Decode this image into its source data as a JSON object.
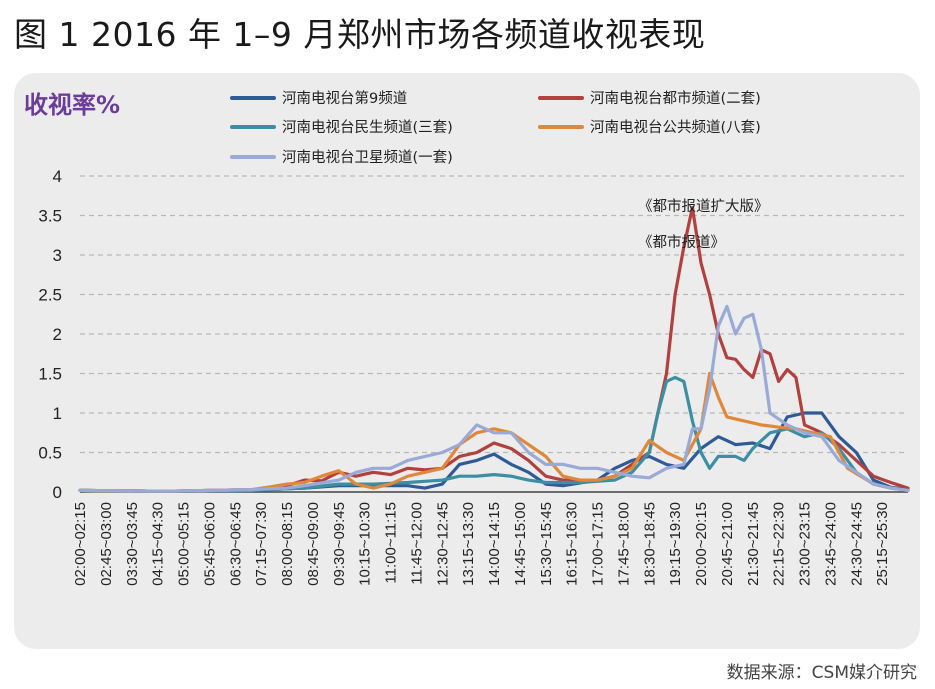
{
  "figure": {
    "title": "图 1 2016 年 1–9 月郑州市场各频道收视表现",
    "source": "数据来源：CSM媒介研究"
  },
  "chart_data": {
    "type": "line",
    "ylabel": "收视率%",
    "ylim": [
      0,
      4
    ],
    "yticks": [
      0,
      0.5,
      1,
      1.5,
      2,
      2.5,
      3,
      3.5,
      4
    ],
    "ytick_labels": [
      "0",
      "0.5",
      "1",
      "1.5",
      "2",
      "2.5",
      "3",
      "3.5",
      "4"
    ],
    "grid": true,
    "legend_position": "top",
    "x_tick_labels": [
      "02:00~02:15",
      "02:45~03:00",
      "03:30~03:45",
      "04:15~04:30",
      "05:00~05:15",
      "05:45~06:00",
      "06:30~06:45",
      "07:15~07:30",
      "08:00~08:15",
      "08:45~09:00",
      "09:30~09:45",
      "10:15~10:30",
      "11:00~11:15",
      "11:45~12:00",
      "12:30~12:45",
      "13:15~13:30",
      "14:00~14:15",
      "14:45~15:00",
      "15:30~15:45",
      "16:15~16:30",
      "17:00~17:15",
      "17:45~18:00",
      "18:30~18:45",
      "19:15~19:30",
      "20:00~20:15",
      "20:45~21:00",
      "21:30~21:45",
      "22:15~22:30",
      "23:00~23:15",
      "23:45~24:00",
      "24:30~24:45",
      "25:15~25:30"
    ],
    "x_count": 96,
    "annotations": [
      {
        "text": "《都市报道扩大版》",
        "x": 70,
        "y": 3.6
      },
      {
        "text": "《都市报道》",
        "x": 70,
        "y": 3.15
      }
    ],
    "series": [
      {
        "name": "河南电视台第9频道",
        "color": "#2e5b96",
        "keypoints": [
          [
            0,
            0.02
          ],
          [
            10,
            0.01
          ],
          [
            20,
            0.02
          ],
          [
            26,
            0.05
          ],
          [
            30,
            0.08
          ],
          [
            33,
            0.08
          ],
          [
            38,
            0.08
          ],
          [
            40,
            0.05
          ],
          [
            42,
            0.1
          ],
          [
            44,
            0.35
          ],
          [
            46,
            0.4
          ],
          [
            48,
            0.48
          ],
          [
            50,
            0.35
          ],
          [
            52,
            0.25
          ],
          [
            54,
            0.1
          ],
          [
            56,
            0.08
          ],
          [
            60,
            0.15
          ],
          [
            62,
            0.3
          ],
          [
            64,
            0.4
          ],
          [
            66,
            0.45
          ],
          [
            68,
            0.35
          ],
          [
            70,
            0.3
          ],
          [
            72,
            0.55
          ],
          [
            74,
            0.7
          ],
          [
            76,
            0.6
          ],
          [
            78,
            0.62
          ],
          [
            80,
            0.55
          ],
          [
            82,
            0.95
          ],
          [
            84,
            1.0
          ],
          [
            86,
            1.0
          ],
          [
            88,
            0.7
          ],
          [
            90,
            0.5
          ],
          [
            92,
            0.15
          ],
          [
            94,
            0.06
          ],
          [
            96,
            0.03
          ]
        ]
      },
      {
        "name": "河南电视台都市频道(二套)",
        "color": "#b0413e",
        "keypoints": [
          [
            0,
            0.02
          ],
          [
            10,
            0.01
          ],
          [
            20,
            0.03
          ],
          [
            24,
            0.08
          ],
          [
            26,
            0.15
          ],
          [
            28,
            0.14
          ],
          [
            30,
            0.25
          ],
          [
            32,
            0.2
          ],
          [
            34,
            0.25
          ],
          [
            36,
            0.22
          ],
          [
            38,
            0.3
          ],
          [
            40,
            0.28
          ],
          [
            42,
            0.3
          ],
          [
            44,
            0.45
          ],
          [
            46,
            0.5
          ],
          [
            48,
            0.62
          ],
          [
            50,
            0.55
          ],
          [
            52,
            0.4
          ],
          [
            54,
            0.2
          ],
          [
            56,
            0.15
          ],
          [
            58,
            0.15
          ],
          [
            60,
            0.15
          ],
          [
            62,
            0.2
          ],
          [
            64,
            0.35
          ],
          [
            66,
            0.5
          ],
          [
            68,
            1.5
          ],
          [
            69,
            2.5
          ],
          [
            70,
            3.1
          ],
          [
            71,
            3.6
          ],
          [
            72,
            2.9
          ],
          [
            73,
            2.5
          ],
          [
            74,
            2.0
          ],
          [
            75,
            1.7
          ],
          [
            76,
            1.68
          ],
          [
            77,
            1.55
          ],
          [
            78,
            1.45
          ],
          [
            79,
            1.8
          ],
          [
            80,
            1.75
          ],
          [
            81,
            1.4
          ],
          [
            82,
            1.55
          ],
          [
            83,
            1.45
          ],
          [
            84,
            0.85
          ],
          [
            86,
            0.75
          ],
          [
            88,
            0.6
          ],
          [
            90,
            0.4
          ],
          [
            92,
            0.2
          ],
          [
            94,
            0.12
          ],
          [
            96,
            0.05
          ]
        ]
      },
      {
        "name": "河南电视台民生频道(三套)",
        "color": "#3c8fa3",
        "keypoints": [
          [
            0,
            0.02
          ],
          [
            10,
            0.01
          ],
          [
            20,
            0.02
          ],
          [
            26,
            0.05
          ],
          [
            30,
            0.1
          ],
          [
            34,
            0.1
          ],
          [
            38,
            0.12
          ],
          [
            42,
            0.15
          ],
          [
            44,
            0.2
          ],
          [
            46,
            0.2
          ],
          [
            48,
            0.22
          ],
          [
            50,
            0.2
          ],
          [
            52,
            0.15
          ],
          [
            54,
            0.12
          ],
          [
            58,
            0.12
          ],
          [
            62,
            0.15
          ],
          [
            64,
            0.25
          ],
          [
            66,
            0.5
          ],
          [
            67,
            1.0
          ],
          [
            68,
            1.4
          ],
          [
            69,
            1.45
          ],
          [
            70,
            1.4
          ],
          [
            71,
            0.9
          ],
          [
            72,
            0.5
          ],
          [
            73,
            0.3
          ],
          [
            74,
            0.45
          ],
          [
            76,
            0.45
          ],
          [
            77,
            0.4
          ],
          [
            78,
            0.55
          ],
          [
            80,
            0.75
          ],
          [
            82,
            0.8
          ],
          [
            84,
            0.7
          ],
          [
            86,
            0.75
          ],
          [
            88,
            0.55
          ],
          [
            90,
            0.25
          ],
          [
            92,
            0.1
          ],
          [
            94,
            0.05
          ],
          [
            96,
            0.02
          ]
        ]
      },
      {
        "name": "河南电视台公共频道(八套)",
        "color": "#e0883a",
        "keypoints": [
          [
            0,
            0.02
          ],
          [
            10,
            0.01
          ],
          [
            20,
            0.03
          ],
          [
            24,
            0.1
          ],
          [
            26,
            0.12
          ],
          [
            28,
            0.2
          ],
          [
            30,
            0.27
          ],
          [
            32,
            0.1
          ],
          [
            34,
            0.05
          ],
          [
            36,
            0.1
          ],
          [
            38,
            0.2
          ],
          [
            40,
            0.25
          ],
          [
            42,
            0.3
          ],
          [
            44,
            0.6
          ],
          [
            46,
            0.75
          ],
          [
            48,
            0.8
          ],
          [
            50,
            0.75
          ],
          [
            52,
            0.6
          ],
          [
            54,
            0.45
          ],
          [
            56,
            0.2
          ],
          [
            58,
            0.15
          ],
          [
            60,
            0.15
          ],
          [
            62,
            0.2
          ],
          [
            64,
            0.3
          ],
          [
            66,
            0.65
          ],
          [
            68,
            0.5
          ],
          [
            70,
            0.4
          ],
          [
            72,
            0.8
          ],
          [
            73,
            1.5
          ],
          [
            74,
            1.2
          ],
          [
            75,
            0.95
          ],
          [
            77,
            0.9
          ],
          [
            79,
            0.85
          ],
          [
            81,
            0.82
          ],
          [
            83,
            0.8
          ],
          [
            85,
            0.75
          ],
          [
            87,
            0.7
          ],
          [
            89,
            0.3
          ],
          [
            92,
            0.1
          ],
          [
            94,
            0.05
          ],
          [
            96,
            0.02
          ]
        ]
      },
      {
        "name": "河南电视台卫星频道(一套)",
        "color": "#9aaad6",
        "keypoints": [
          [
            0,
            0.02
          ],
          [
            10,
            0.01
          ],
          [
            20,
            0.03
          ],
          [
            24,
            0.05
          ],
          [
            26,
            0.08
          ],
          [
            30,
            0.15
          ],
          [
            32,
            0.25
          ],
          [
            34,
            0.3
          ],
          [
            36,
            0.3
          ],
          [
            38,
            0.4
          ],
          [
            40,
            0.45
          ],
          [
            42,
            0.5
          ],
          [
            44,
            0.6
          ],
          [
            46,
            0.85
          ],
          [
            48,
            0.75
          ],
          [
            50,
            0.75
          ],
          [
            52,
            0.5
          ],
          [
            54,
            0.35
          ],
          [
            56,
            0.35
          ],
          [
            58,
            0.3
          ],
          [
            60,
            0.3
          ],
          [
            62,
            0.25
          ],
          [
            64,
            0.2
          ],
          [
            66,
            0.18
          ],
          [
            68,
            0.3
          ],
          [
            70,
            0.35
          ],
          [
            71,
            0.8
          ],
          [
            72,
            0.8
          ],
          [
            73,
            1.3
          ],
          [
            74,
            2.1
          ],
          [
            75,
            2.35
          ],
          [
            76,
            2.0
          ],
          [
            77,
            2.2
          ],
          [
            78,
            2.25
          ],
          [
            79,
            1.8
          ],
          [
            80,
            1.0
          ],
          [
            82,
            0.85
          ],
          [
            84,
            0.75
          ],
          [
            86,
            0.7
          ],
          [
            88,
            0.4
          ],
          [
            90,
            0.25
          ],
          [
            92,
            0.1
          ],
          [
            94,
            0.05
          ],
          [
            96,
            0.02
          ]
        ]
      }
    ]
  }
}
